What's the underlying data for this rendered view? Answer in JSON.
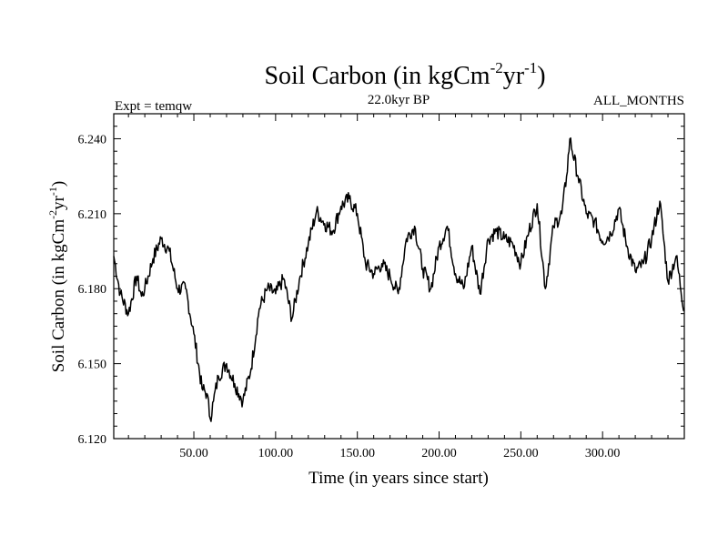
{
  "chart_data": {
    "type": "line",
    "title": "Soil Carbon (in kgCm",
    "title_exp1": "-2",
    "title_mid": "yr",
    "title_exp2": "-1",
    "title_end": ")",
    "subtitle": "22.0kyr BP",
    "left_label": "Expt = temqw",
    "right_label": "ALL_MONTHS",
    "xlabel": "Time (in years since start)",
    "ylabel": "Soil Carbon (in kgCm",
    "ylabel_exp1": "-2",
    "ylabel_mid": "yr",
    "ylabel_exp2": "-1",
    "ylabel_end": ")",
    "xlim": [
      1,
      350
    ],
    "ylim": [
      6.12,
      6.25
    ],
    "xticks": [
      50,
      100,
      150,
      200,
      250,
      300
    ],
    "xtick_labels": [
      "50.00",
      "100.00",
      "150.00",
      "200.00",
      "250.00",
      "300.00"
    ],
    "yticks": [
      6.12,
      6.15,
      6.18,
      6.21,
      6.24
    ],
    "ytick_labels": [
      "6.120",
      "6.150",
      "6.180",
      "6.210",
      "6.240"
    ],
    "grid": false,
    "series": [
      {
        "color": "#000000",
        "x": [
          1,
          5,
          10,
          15,
          18,
          20,
          25,
          30,
          35,
          40,
          45,
          50,
          55,
          58,
          60,
          62,
          65,
          70,
          75,
          80,
          85,
          90,
          95,
          100,
          105,
          110,
          115,
          120,
          125,
          130,
          135,
          140,
          145,
          150,
          155,
          160,
          165,
          170,
          175,
          180,
          185,
          190,
          195,
          200,
          205,
          210,
          215,
          220,
          225,
          230,
          235,
          240,
          245,
          250,
          255,
          260,
          265,
          270,
          275,
          278,
          280,
          285,
          290,
          295,
          300,
          305,
          310,
          315,
          320,
          325,
          330,
          335,
          340,
          345,
          350
        ],
        "y": [
          6.193,
          6.178,
          6.17,
          6.185,
          6.177,
          6.18,
          6.192,
          6.2,
          6.195,
          6.18,
          6.18,
          6.162,
          6.14,
          6.138,
          6.128,
          6.135,
          6.145,
          6.15,
          6.142,
          6.135,
          6.148,
          6.172,
          6.18,
          6.178,
          6.184,
          6.168,
          6.185,
          6.198,
          6.211,
          6.206,
          6.203,
          6.213,
          6.216,
          6.21,
          6.19,
          6.186,
          6.19,
          6.185,
          6.178,
          6.2,
          6.205,
          6.188,
          6.18,
          6.197,
          6.205,
          6.186,
          6.18,
          6.197,
          6.178,
          6.2,
          6.203,
          6.2,
          6.198,
          6.19,
          6.203,
          6.214,
          6.18,
          6.205,
          6.21,
          6.225,
          6.24,
          6.225,
          6.21,
          6.207,
          6.199,
          6.202,
          6.212,
          6.197,
          6.187,
          6.19,
          6.2,
          6.215,
          6.183,
          6.193,
          6.171
        ]
      }
    ]
  }
}
